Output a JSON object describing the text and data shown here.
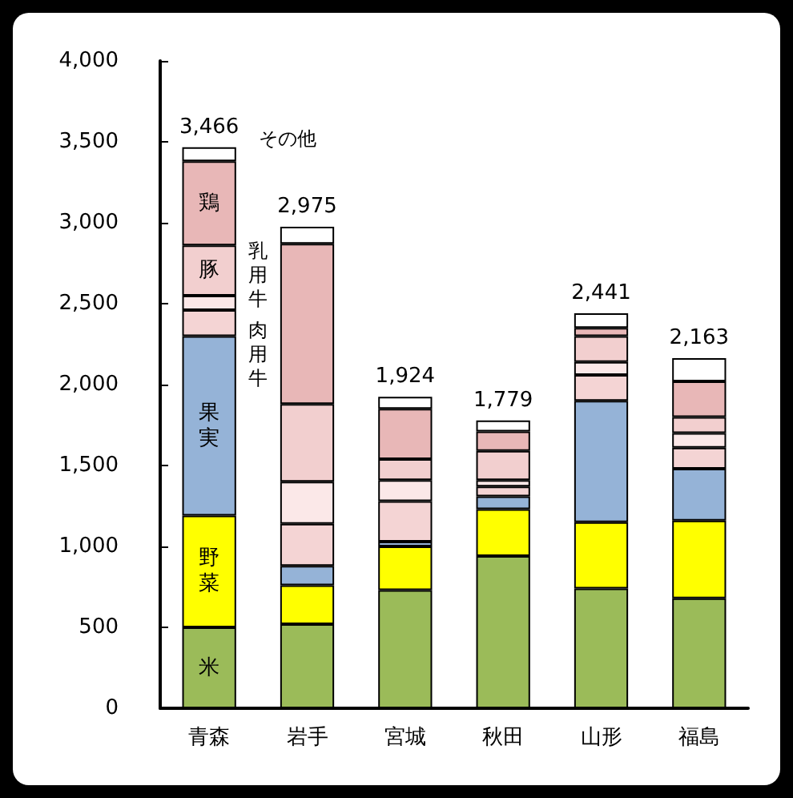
{
  "chart_data": {
    "type": "bar",
    "stacked": true,
    "categories": [
      "青森",
      "岩手",
      "宮城",
      "秋田",
      "山形",
      "福島"
    ],
    "series": [
      {
        "name": "米",
        "color": "#9bbb59",
        "values": [
          500,
          520,
          730,
          940,
          740,
          680
        ]
      },
      {
        "name": "野菜",
        "color": "#ffff00",
        "values": [
          690,
          240,
          270,
          290,
          410,
          480
        ]
      },
      {
        "name": "果実",
        "color": "#95b3d7",
        "values": [
          1110,
          120,
          30,
          80,
          750,
          320
        ]
      },
      {
        "name": "肉用牛",
        "color": "#f4d4d4",
        "values": [
          160,
          260,
          250,
          60,
          160,
          130
        ]
      },
      {
        "name": "乳用牛",
        "color": "#fbe8e8",
        "values": [
          90,
          260,
          130,
          40,
          80,
          90
        ]
      },
      {
        "name": "豚",
        "color": "#f2cfcf",
        "values": [
          310,
          480,
          130,
          180,
          160,
          100
        ]
      },
      {
        "name": "鶏",
        "color": "#e8b7b7",
        "values": [
          520,
          990,
          310,
          120,
          50,
          220
        ]
      },
      {
        "name": "その他",
        "color": "#ffffff",
        "values": [
          86,
          105,
          74,
          69,
          91,
          143
        ]
      }
    ],
    "totals": [
      "3,466",
      "2,975",
      "1,924",
      "1,779",
      "2,441",
      "2,163"
    ],
    "ylim": [
      0,
      4000
    ],
    "yticks": [
      0,
      500,
      {
        "value": 1000,
        "label": "1,000"
      },
      {
        "value": 1500,
        "label": "1,500"
      },
      {
        "value": 2000,
        "label": "2,000"
      },
      {
        "value": 2500,
        "label": "2,500"
      },
      {
        "value": 3000,
        "label": "3,000"
      },
      {
        "value": 3500,
        "label": "3,500"
      },
      {
        "value": 4000,
        "label": "4,000"
      }
    ],
    "grid": false,
    "legend": false
  }
}
